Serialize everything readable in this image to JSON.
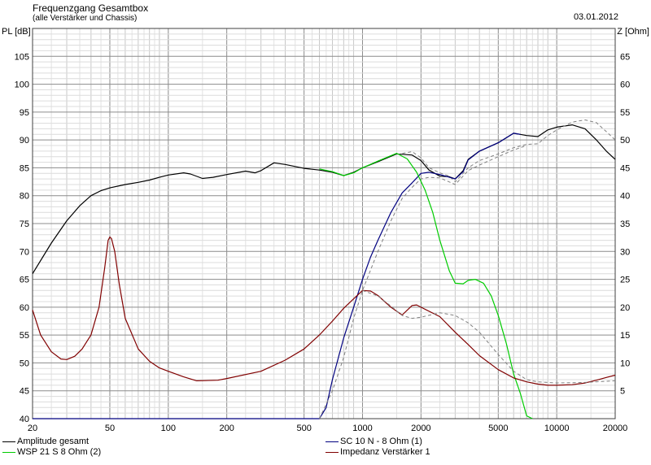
{
  "header": {
    "title": "Frequenzgang Gesamtbox",
    "subtitle": "(alle Verstärker und Chassis)",
    "date": "03.01.2012"
  },
  "chart_data": {
    "type": "line",
    "xscale": "log",
    "xlim": [
      20,
      20000
    ],
    "ylim": [
      40,
      110
    ],
    "y2lim": [
      0,
      70
    ],
    "ylabel": "PL [dB]",
    "y2label": "Z [Ohm]",
    "grid": true,
    "x_ticks": [
      20,
      50,
      100,
      200,
      500,
      1000,
      2000,
      5000,
      10000,
      20000
    ],
    "x_tick_labels": [
      "20",
      "50",
      "100",
      "200",
      "500",
      "1000",
      "2000",
      "5000",
      "10000",
      "20000"
    ],
    "y_ticks": [
      45,
      50,
      55,
      60,
      65,
      70,
      75,
      80,
      85,
      90,
      95,
      100,
      105
    ],
    "y2_ticks": [
      5,
      10,
      15,
      20,
      25,
      30,
      35,
      40,
      45,
      50,
      55,
      60,
      65
    ],
    "legend": [
      {
        "name": "Amplitude gesamt",
        "color": "#000000"
      },
      {
        "name": "SC 10 N - 8 Ohm (1)",
        "color": "#000080"
      },
      {
        "name": "WSP 21 S 8 Ohm (2)",
        "color": "#00cc00"
      },
      {
        "name": "Impedanz Verstärker 1",
        "color": "#800000"
      }
    ],
    "series": [
      {
        "name": "Amplitude gesamt",
        "axis": "left",
        "color": "#000000",
        "points": [
          [
            20,
            66
          ],
          [
            25,
            71.5
          ],
          [
            30,
            75.5
          ],
          [
            35,
            78.2
          ],
          [
            40,
            80
          ],
          [
            45,
            80.9
          ],
          [
            50,
            81.4
          ],
          [
            60,
            82
          ],
          [
            70,
            82.4
          ],
          [
            80,
            82.8
          ],
          [
            90,
            83.3
          ],
          [
            100,
            83.7
          ],
          [
            120,
            84.1
          ],
          [
            130,
            83.9
          ],
          [
            150,
            83.1
          ],
          [
            170,
            83.3
          ],
          [
            200,
            83.8
          ],
          [
            250,
            84.4
          ],
          [
            280,
            84.1
          ],
          [
            300,
            84.5
          ],
          [
            350,
            85.9
          ],
          [
            400,
            85.6
          ],
          [
            500,
            84.9
          ],
          [
            600,
            84.6
          ],
          [
            700,
            84.2
          ],
          [
            800,
            83.6
          ],
          [
            900,
            84.2
          ],
          [
            1000,
            85
          ],
          [
            1200,
            86.1
          ],
          [
            1500,
            87.5
          ],
          [
            1800,
            87.3
          ],
          [
            2000,
            86.3
          ],
          [
            2200,
            84.6
          ],
          [
            2500,
            83.5
          ],
          [
            2800,
            83.4
          ],
          [
            3000,
            83
          ],
          [
            3300,
            84.5
          ],
          [
            3500,
            86.5
          ],
          [
            4000,
            88
          ],
          [
            5000,
            89.5
          ],
          [
            6000,
            91.2
          ],
          [
            7000,
            90.8
          ],
          [
            8000,
            90.6
          ],
          [
            9000,
            91.8
          ],
          [
            10000,
            92.3
          ],
          [
            12000,
            92.7
          ],
          [
            14000,
            92
          ],
          [
            16000,
            90
          ],
          [
            18000,
            88
          ],
          [
            20000,
            86.5
          ]
        ]
      },
      {
        "name": "Amplitude gesamt (dashed)",
        "axis": "left",
        "color": "#808080",
        "dashed": true,
        "points": [
          [
            1500,
            87.4
          ],
          [
            1800,
            87.9
          ],
          [
            2000,
            86.8
          ],
          [
            2200,
            85
          ],
          [
            2500,
            84.1
          ],
          [
            2800,
            83.5
          ],
          [
            3000,
            82.5
          ],
          [
            3300,
            84
          ],
          [
            3500,
            85
          ],
          [
            4000,
            86.3
          ],
          [
            5000,
            87.5
          ],
          [
            6000,
            88.6
          ],
          [
            7000,
            89.2
          ],
          [
            8000,
            89.3
          ],
          [
            9000,
            90.8
          ],
          [
            10000,
            91.8
          ],
          [
            12000,
            93.2
          ],
          [
            14000,
            93.6
          ],
          [
            16000,
            93.1
          ],
          [
            18000,
            91.5
          ],
          [
            20000,
            90
          ]
        ]
      },
      {
        "name": "SC 10 N - 8 Ohm (1)",
        "axis": "left",
        "color": "#000080",
        "points": [
          [
            20,
            40
          ],
          [
            600,
            40
          ],
          [
            650,
            42
          ],
          [
            700,
            47
          ],
          [
            800,
            54.5
          ],
          [
            900,
            60
          ],
          [
            1000,
            65
          ],
          [
            1100,
            69
          ],
          [
            1200,
            72
          ],
          [
            1400,
            77
          ],
          [
            1600,
            80.5
          ],
          [
            1800,
            82.3
          ],
          [
            2000,
            84
          ],
          [
            2200,
            84.2
          ],
          [
            2500,
            83.8
          ],
          [
            3000,
            83
          ],
          [
            3300,
            84.3
          ],
          [
            3500,
            86.4
          ],
          [
            4000,
            88
          ],
          [
            5000,
            89.5
          ],
          [
            6000,
            91.2
          ],
          [
            6500,
            91
          ]
        ]
      },
      {
        "name": "SC 10 N - 8 Ohm (1) (dashed)",
        "axis": "left",
        "color": "#808080",
        "dashed": true,
        "points": [
          [
            600,
            40
          ],
          [
            700,
            45
          ],
          [
            800,
            51
          ],
          [
            900,
            58
          ],
          [
            1000,
            63
          ],
          [
            1200,
            70
          ],
          [
            1400,
            75.5
          ],
          [
            1600,
            79.5
          ],
          [
            1800,
            81.5
          ],
          [
            2000,
            83
          ],
          [
            2200,
            83.3
          ],
          [
            2500,
            83.2
          ],
          [
            3000,
            82
          ],
          [
            3500,
            84.5
          ],
          [
            4000,
            85.5
          ],
          [
            5000,
            87
          ],
          [
            6000,
            88.2
          ],
          [
            7000,
            89
          ]
        ]
      },
      {
        "name": "WSP 21 S 8 Ohm (2)",
        "axis": "left",
        "color": "#00cc00",
        "points": [
          [
            600,
            84.8
          ],
          [
            700,
            84.3
          ],
          [
            800,
            83.6
          ],
          [
            900,
            84.1
          ],
          [
            1000,
            85
          ],
          [
            1200,
            86.2
          ],
          [
            1500,
            87.6
          ],
          [
            1700,
            86.6
          ],
          [
            1900,
            84.2
          ],
          [
            2100,
            81
          ],
          [
            2300,
            77
          ],
          [
            2500,
            72
          ],
          [
            2800,
            66.5
          ],
          [
            3000,
            64.3
          ],
          [
            3300,
            64.2
          ],
          [
            3500,
            64.8
          ],
          [
            3800,
            65
          ],
          [
            4200,
            64.3
          ],
          [
            4600,
            62
          ],
          [
            5000,
            58.5
          ],
          [
            5500,
            53.5
          ],
          [
            6000,
            48
          ],
          [
            6500,
            44.5
          ],
          [
            7000,
            40.5
          ],
          [
            7500,
            40
          ]
        ]
      },
      {
        "name": "Impedanz Verstärker 1",
        "axis": "right",
        "color": "#800000",
        "points": [
          [
            20,
            19.5
          ],
          [
            22,
            15
          ],
          [
            25,
            12
          ],
          [
            28,
            10.7
          ],
          [
            30,
            10.6
          ],
          [
            33,
            11.2
          ],
          [
            36,
            12.5
          ],
          [
            40,
            15
          ],
          [
            44,
            20
          ],
          [
            47,
            27
          ],
          [
            49,
            32
          ],
          [
            50,
            32.6
          ],
          [
            51,
            32.3
          ],
          [
            53,
            30
          ],
          [
            56,
            24
          ],
          [
            60,
            18
          ],
          [
            70,
            12.5
          ],
          [
            80,
            10.3
          ],
          [
            90,
            9.1
          ],
          [
            100,
            8.5
          ],
          [
            120,
            7.5
          ],
          [
            140,
            6.8
          ],
          [
            180,
            6.9
          ],
          [
            200,
            7.2
          ],
          [
            300,
            8.5
          ],
          [
            400,
            10.5
          ],
          [
            500,
            12.5
          ],
          [
            600,
            15
          ],
          [
            700,
            17.5
          ],
          [
            800,
            19.8
          ],
          [
            900,
            21.5
          ],
          [
            1000,
            23
          ],
          [
            1100,
            22.9
          ],
          [
            1200,
            22.1
          ],
          [
            1400,
            20
          ],
          [
            1600,
            18.6
          ],
          [
            1800,
            20.3
          ],
          [
            1900,
            20.4
          ],
          [
            2000,
            20
          ],
          [
            2500,
            18.3
          ],
          [
            3000,
            15.5
          ],
          [
            3500,
            13.3
          ],
          [
            4000,
            11.3
          ],
          [
            5000,
            8.8
          ],
          [
            6000,
            7.3
          ],
          [
            7000,
            6.6
          ],
          [
            8000,
            6.2
          ],
          [
            9000,
            6
          ],
          [
            10000,
            6
          ],
          [
            12000,
            6.1
          ],
          [
            14000,
            6.4
          ],
          [
            16000,
            6.9
          ],
          [
            18000,
            7.4
          ],
          [
            20000,
            7.8
          ]
        ]
      },
      {
        "name": "Impedanz Verstärker 1 (dashed)",
        "axis": "right",
        "color": "#808080",
        "dashed": true,
        "points": [
          [
            1000,
            23
          ],
          [
            1200,
            22
          ],
          [
            1400,
            20.2
          ],
          [
            1600,
            18.5
          ],
          [
            1800,
            18
          ],
          [
            2000,
            18.2
          ],
          [
            2500,
            19
          ],
          [
            3000,
            18.5
          ],
          [
            3500,
            17.2
          ],
          [
            4000,
            15.5
          ],
          [
            5000,
            11.5
          ],
          [
            6000,
            8.5
          ],
          [
            7000,
            7
          ],
          [
            8000,
            6.6
          ],
          [
            10000,
            6.4
          ],
          [
            14000,
            6.5
          ],
          [
            20000,
            6.8
          ]
        ]
      }
    ]
  }
}
